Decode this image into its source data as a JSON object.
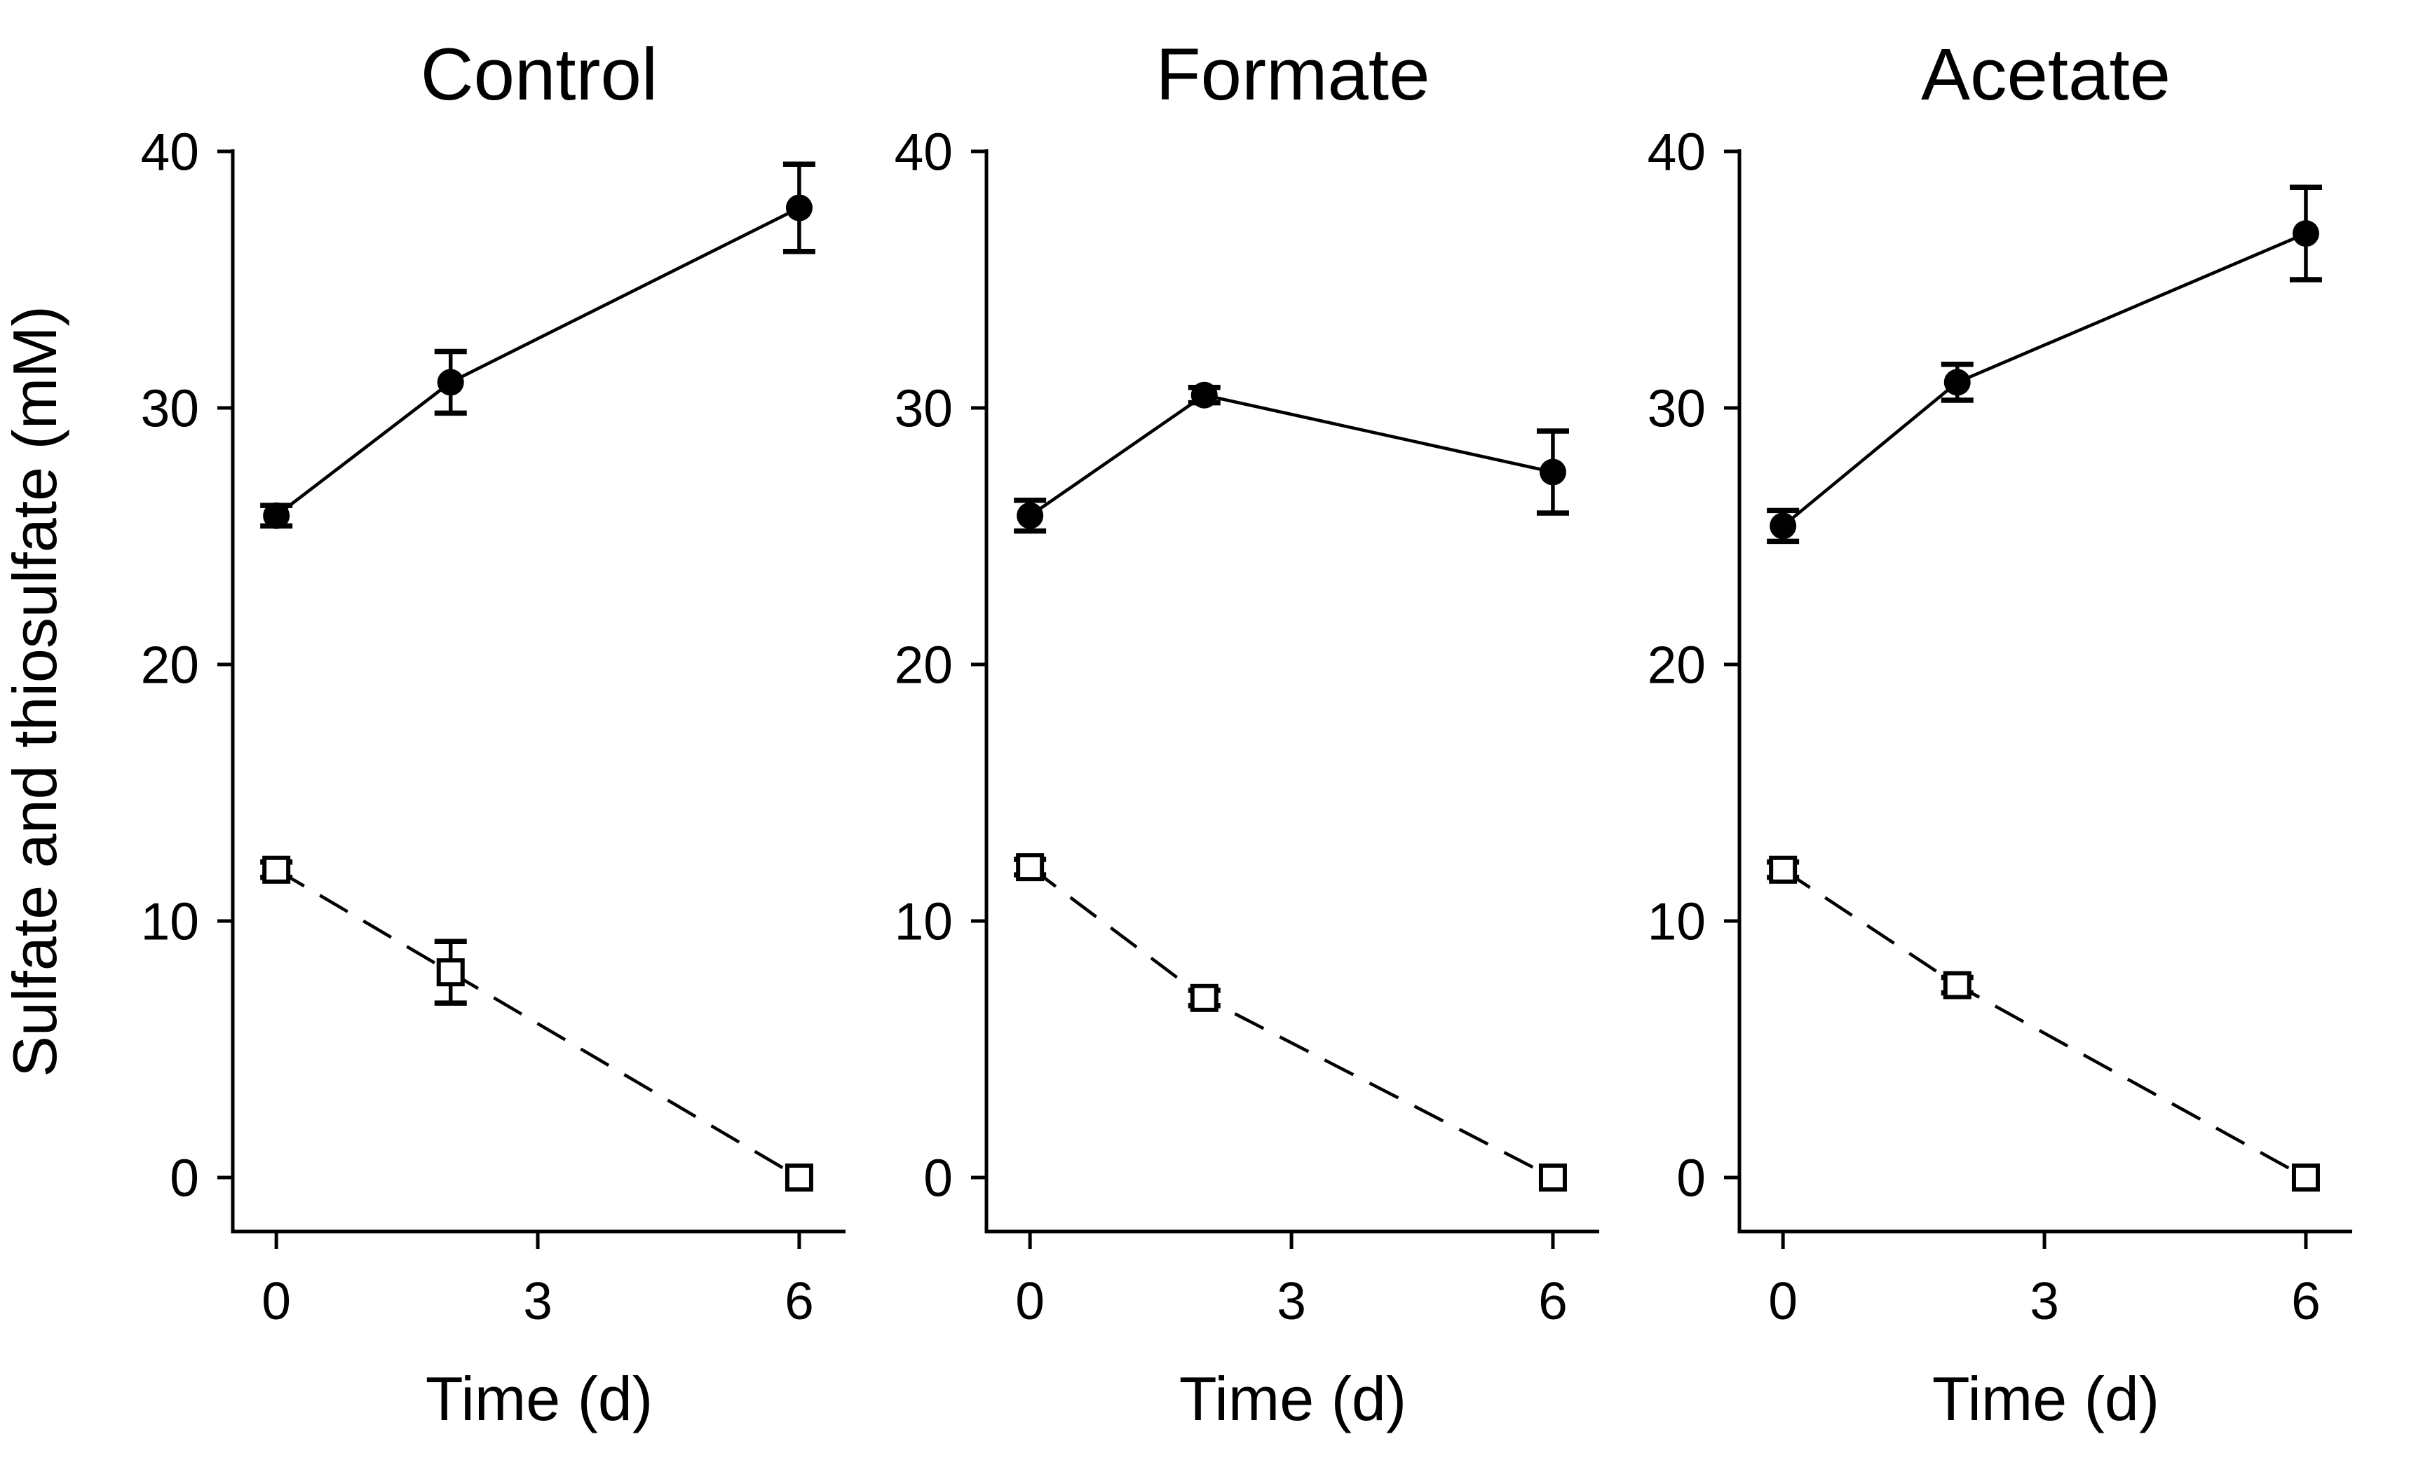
{
  "figure": {
    "background": "#ffffff",
    "ink": "#000000"
  },
  "chart_data": {
    "type": "line",
    "layout": {
      "panels": "3 side-by-side, shared y scale",
      "grid": false,
      "legend": "none",
      "error_bars": "vertical with caps"
    },
    "xlabel": "Time (d)",
    "ylabel": "Sulfate and thiosulfate (mM)",
    "xlim": [
      -0.5,
      6.5
    ],
    "ylim": [
      0,
      40
    ],
    "xticks": [
      0,
      3,
      6
    ],
    "yticks": [
      0,
      10,
      20,
      30,
      40
    ],
    "x": [
      0,
      2,
      6
    ],
    "panels": [
      {
        "title": "Control",
        "series": [
          {
            "name": "sulfate",
            "marker": "filled-circle",
            "line": "solid",
            "values": [
              25.8,
              31.0,
              37.8
            ],
            "errors": [
              0.4,
              1.2,
              1.7
            ]
          },
          {
            "name": "thiosulfate",
            "marker": "open-square",
            "line": "dashed",
            "values": [
              12.0,
              8.0,
              0.0
            ],
            "errors": [
              0.3,
              1.2,
              0.0
            ]
          }
        ]
      },
      {
        "title": "Formate",
        "series": [
          {
            "name": "sulfate",
            "marker": "filled-circle",
            "line": "solid",
            "values": [
              25.8,
              30.5,
              27.5
            ],
            "errors": [
              0.6,
              0.3,
              1.6
            ]
          },
          {
            "name": "thiosulfate",
            "marker": "open-square",
            "line": "dashed",
            "values": [
              12.1,
              7.0,
              0.0
            ],
            "errors": [
              0.3,
              0.3,
              0.0
            ]
          }
        ]
      },
      {
        "title": "Acetate",
        "series": [
          {
            "name": "sulfate",
            "marker": "filled-circle",
            "line": "solid",
            "values": [
              25.4,
              31.0,
              36.8
            ],
            "errors": [
              0.6,
              0.7,
              1.8
            ]
          },
          {
            "name": "thiosulfate",
            "marker": "open-square",
            "line": "dashed",
            "values": [
              12.0,
              7.5,
              0.0
            ],
            "errors": [
              0.3,
              0.3,
              0.0
            ]
          }
        ]
      }
    ]
  }
}
